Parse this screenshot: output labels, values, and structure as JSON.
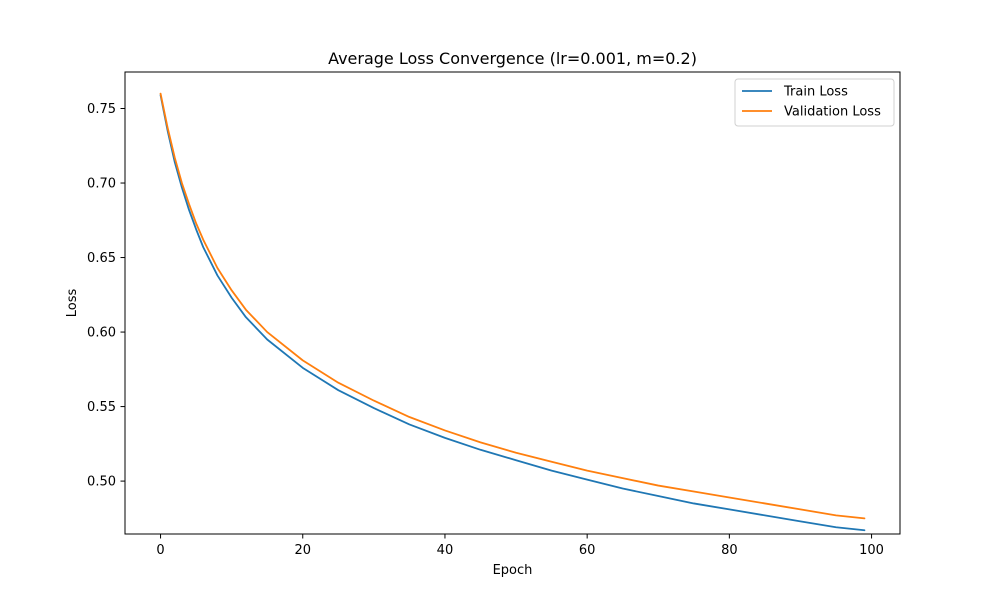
{
  "chart_data": {
    "type": "line",
    "title": "Average Loss Convergence (lr=0.001, m=0.2)",
    "xlabel": "Epoch",
    "ylabel": "Loss",
    "xlim": [
      -5,
      104
    ],
    "ylim": [
      0.4645,
      0.7745
    ],
    "xticks": [
      0,
      20,
      40,
      60,
      80,
      100
    ],
    "yticks": [
      0.5,
      0.55,
      0.6,
      0.65,
      0.7,
      0.75
    ],
    "grid": false,
    "legend_position": "top-right",
    "x": [
      0,
      1,
      2,
      3,
      4,
      5,
      6,
      8,
      10,
      12,
      15,
      20,
      25,
      30,
      35,
      40,
      45,
      50,
      55,
      60,
      65,
      70,
      75,
      80,
      85,
      90,
      95,
      99
    ],
    "series": [
      {
        "name": "Train Loss",
        "color": "#1f77b4",
        "values": [
          0.759,
          0.735,
          0.714,
          0.697,
          0.682,
          0.669,
          0.657,
          0.638,
          0.623,
          0.61,
          0.595,
          0.576,
          0.561,
          0.549,
          0.538,
          0.529,
          0.521,
          0.514,
          0.507,
          0.501,
          0.495,
          0.49,
          0.485,
          0.481,
          0.477,
          0.473,
          0.469,
          0.467
        ]
      },
      {
        "name": "Validation Loss",
        "color": "#ff7f0e",
        "values": [
          0.76,
          0.737,
          0.717,
          0.7,
          0.686,
          0.673,
          0.662,
          0.643,
          0.628,
          0.615,
          0.6,
          0.581,
          0.566,
          0.554,
          0.543,
          0.534,
          0.526,
          0.519,
          0.513,
          0.507,
          0.502,
          0.497,
          0.493,
          0.489,
          0.485,
          0.481,
          0.477,
          0.475
        ]
      }
    ]
  }
}
